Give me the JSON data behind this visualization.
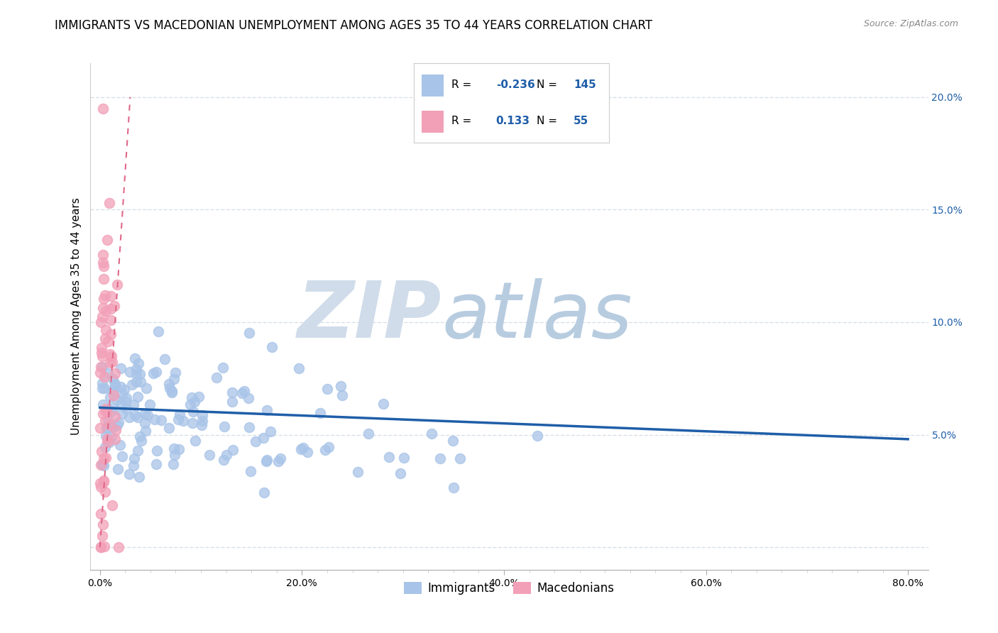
{
  "title": "IMMIGRANTS VS MACEDONIAN UNEMPLOYMENT AMONG AGES 35 TO 44 YEARS CORRELATION CHART",
  "source": "Source: ZipAtlas.com",
  "xlabel_ticks": [
    "0.0%",
    "",
    "",
    "",
    "",
    "",
    "",
    "",
    "20.0%",
    "",
    "",
    "",
    "",
    "",
    "",
    "",
    "40.0%",
    "",
    "",
    "",
    "",
    "",
    "",
    "",
    "60.0%",
    "",
    "",
    "",
    "",
    "",
    "",
    "",
    "80.0%"
  ],
  "xlabel_vals_major": [
    0.0,
    0.2,
    0.4,
    0.6,
    0.8
  ],
  "xlabel_labels_major": [
    "0.0%",
    "20.0%",
    "40.0%",
    "60.0%",
    "80.0%"
  ],
  "ylabel_vals": [
    0.0,
    0.05,
    0.1,
    0.15,
    0.2
  ],
  "ylabel_ticks_right": [
    "",
    "5.0%",
    "10.0%",
    "15.0%",
    "20.0%"
  ],
  "ylabel_label": "Unemployment Among Ages 35 to 44 years",
  "R_immigrants": -0.236,
  "N_immigrants": 145,
  "R_macedonians": 0.133,
  "N_macedonians": 55,
  "immigrant_color": "#a8c4e8",
  "macedonian_color": "#f2a0b8",
  "trend_immigrant_color": "#1f5ea8",
  "trend_macedonian_color": "#e06888",
  "watermark_zip_color": "#d0dcea",
  "watermark_atlas_color": "#b8cce0",
  "background_color": "#ffffff",
  "grid_color": "#d8e0e8",
  "title_fontsize": 12,
  "axis_label_fontsize": 11,
  "tick_fontsize": 10,
  "source_fontsize": 9,
  "seed": 42,
  "xlim": [
    -0.01,
    0.82
  ],
  "ylim": [
    -0.01,
    0.215
  ],
  "blue_trend_x": [
    0.0,
    0.8
  ],
  "blue_trend_y": [
    0.062,
    0.048
  ],
  "pink_trend_x": [
    0.0,
    0.03
  ],
  "pink_trend_y": [
    0.0,
    0.2
  ]
}
